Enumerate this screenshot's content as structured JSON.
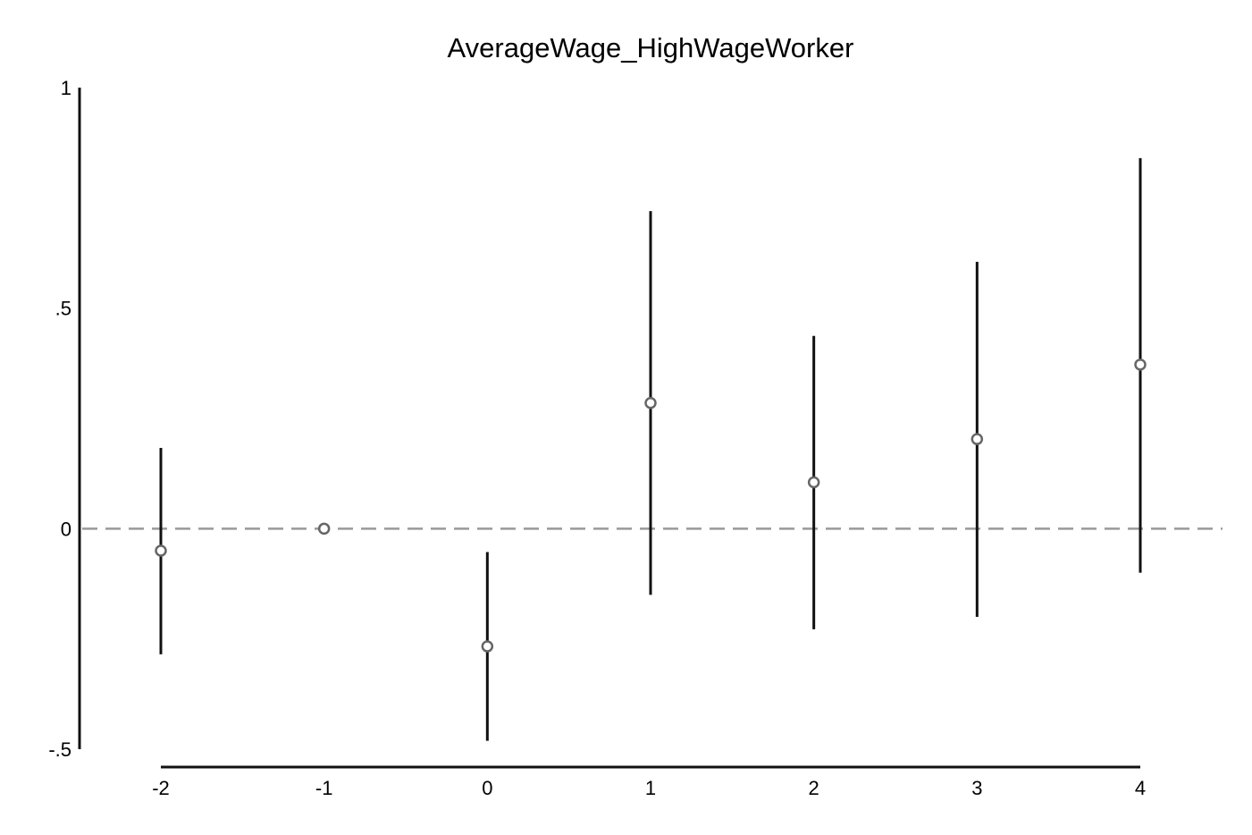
{
  "chart_data": {
    "type": "scatter",
    "title": "AverageWage_HighWageWorker",
    "xlabel": "",
    "ylabel": "",
    "x_ticks": [
      "-2",
      "-1",
      "0",
      "1",
      "2",
      "3",
      "4"
    ],
    "y_ticks": [
      {
        "value": 1,
        "label": "1"
      },
      {
        "value": 0.5,
        "label": ".5"
      },
      {
        "value": 0,
        "label": "0"
      },
      {
        "value": -0.5,
        "label": "-.5"
      }
    ],
    "xlim": [
      -2,
      4
    ],
    "ylim": [
      -0.5,
      1
    ],
    "reference_line": {
      "y": 0,
      "style": "dashed",
      "color": "#999999"
    },
    "marker_color": "#666666",
    "ci_color": "#111111",
    "series": [
      {
        "x": [
          -2,
          -1,
          0,
          1,
          2,
          3,
          4
        ],
        "y": [
          -0.05,
          0.0,
          -0.267,
          0.285,
          0.105,
          0.203,
          0.372
        ],
        "ci_low": [
          -0.285,
          null,
          -0.481,
          -0.15,
          -0.228,
          -0.2,
          -0.1
        ],
        "ci_high": [
          0.183,
          null,
          -0.053,
          0.72,
          0.437,
          0.605,
          0.84
        ]
      }
    ]
  }
}
